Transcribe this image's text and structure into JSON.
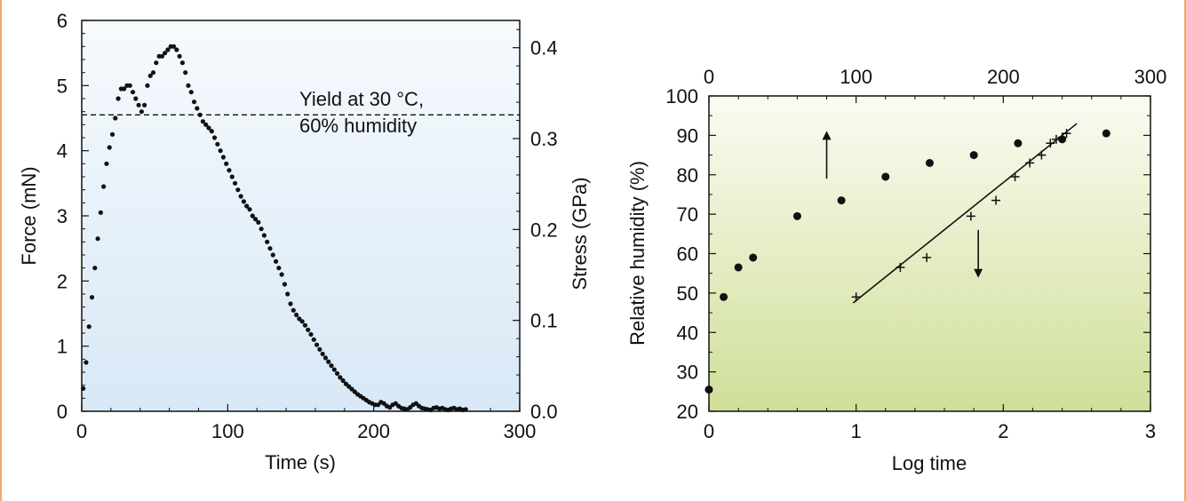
{
  "chart_data": [
    {
      "type": "scatter",
      "title": "",
      "xlabel": "Time (s)",
      "ylabel": "Force (mN)",
      "y2label": "Stress (GPa)",
      "xlim": [
        0,
        300
      ],
      "ylim": [
        0,
        6
      ],
      "y2lim": [
        0,
        0.43
      ],
      "xticks": [
        "0",
        "100",
        "200",
        "300"
      ],
      "yticks": [
        "0",
        "1",
        "2",
        "3",
        "4",
        "5",
        "6"
      ],
      "y2ticks": [
        "0.0",
        "0.1",
        "0.2",
        "0.3",
        "0.4"
      ],
      "y2tick_values": [
        0,
        0.1,
        0.2,
        0.3,
        0.4
      ],
      "background_gradient": [
        "#f6fafd",
        "#d8e8f6"
      ],
      "reference_line": {
        "y": 4.55,
        "style": "dashed",
        "label_lines": [
          "Yield at 30 °C,",
          "60% humidity"
        ]
      },
      "series": [
        {
          "x": [
            1,
            3,
            5,
            7,
            9,
            11,
            13,
            15,
            17,
            19,
            21,
            23,
            25,
            27,
            29,
            31,
            33,
            35,
            37,
            39,
            41,
            43,
            45,
            47,
            49,
            51,
            53,
            55,
            57,
            59,
            61,
            63,
            65,
            67,
            69,
            71,
            73,
            75,
            77,
            79,
            81,
            83,
            85,
            87,
            89,
            91,
            93,
            95,
            97,
            99,
            101,
            103,
            105,
            107,
            109,
            111,
            113,
            115,
            117,
            119,
            121,
            123,
            125,
            127,
            129,
            131,
            133,
            135,
            137,
            139,
            141,
            143,
            145,
            147,
            149,
            151,
            153,
            155,
            157,
            159,
            161,
            163,
            165,
            167,
            169,
            171,
            173,
            175,
            177,
            179,
            181,
            183,
            185,
            187,
            189,
            191,
            193,
            195,
            197,
            199,
            201,
            203,
            205,
            207,
            209,
            211,
            213,
            215,
            217,
            219,
            221,
            223,
            225,
            227,
            229,
            231,
            233,
            235,
            237,
            239,
            241,
            243,
            245,
            247,
            249,
            251,
            253,
            255,
            257,
            259,
            261,
            263
          ],
          "y": [
            0.35,
            0.75,
            1.3,
            1.75,
            2.2,
            2.65,
            3.05,
            3.45,
            3.8,
            4.05,
            4.25,
            4.5,
            4.8,
            4.95,
            4.95,
            5.0,
            5.0,
            4.9,
            4.8,
            4.7,
            4.6,
            4.7,
            5.0,
            5.15,
            5.2,
            5.35,
            5.45,
            5.45,
            5.5,
            5.55,
            5.6,
            5.6,
            5.55,
            5.45,
            5.35,
            5.2,
            5.0,
            4.9,
            4.75,
            4.65,
            4.55,
            4.45,
            4.4,
            4.35,
            4.3,
            4.2,
            4.1,
            4.0,
            3.9,
            3.8,
            3.7,
            3.6,
            3.5,
            3.4,
            3.3,
            3.22,
            3.15,
            3.1,
            3.0,
            2.95,
            2.9,
            2.8,
            2.7,
            2.6,
            2.5,
            2.4,
            2.3,
            2.2,
            2.1,
            1.95,
            1.8,
            1.65,
            1.55,
            1.48,
            1.42,
            1.38,
            1.32,
            1.25,
            1.18,
            1.1,
            1.02,
            0.95,
            0.88,
            0.82,
            0.76,
            0.7,
            0.64,
            0.58,
            0.52,
            0.47,
            0.42,
            0.38,
            0.34,
            0.3,
            0.26,
            0.23,
            0.2,
            0.17,
            0.14,
            0.12,
            0.1,
            0.1,
            0.14,
            0.12,
            0.08,
            0.06,
            0.1,
            0.12,
            0.08,
            0.05,
            0.04,
            0.03,
            0.06,
            0.1,
            0.12,
            0.08,
            0.05,
            0.04,
            0.03,
            0.02,
            0.05,
            0.06,
            0.04,
            0.05,
            0.03,
            0.02,
            0.04,
            0.05,
            0.03,
            0.04,
            0.02,
            0.03
          ]
        }
      ]
    },
    {
      "type": "scatter",
      "title": "",
      "xlabel": "Log time",
      "ylabel": "Relative humidity (%)",
      "xlim": [
        0,
        3
      ],
      "ylim": [
        20,
        100
      ],
      "x2lim": [
        0,
        300
      ],
      "xticks": [
        "0",
        "1",
        "2",
        "3"
      ],
      "yticks": [
        "20",
        "30",
        "40",
        "50",
        "60",
        "70",
        "80",
        "90",
        "100"
      ],
      "x2ticks": [
        "0",
        "100",
        "200",
        "300"
      ],
      "background_gradient": [
        "#fbfbf3",
        "#cfdf98"
      ],
      "series": [
        {
          "marker": "circle",
          "axis": "top",
          "x": [
            0,
            10,
            20,
            30,
            60,
            90,
            120,
            150,
            180,
            210,
            240,
            270
          ],
          "y": [
            25.5,
            49,
            56.5,
            59,
            69.5,
            73.5,
            79.5,
            83,
            85,
            88,
            89,
            90.5
          ]
        },
        {
          "marker": "plus",
          "axis": "bottom",
          "x": [
            1.0,
            1.3,
            1.48,
            1.78,
            1.95,
            2.08,
            2.18,
            2.26,
            2.32,
            2.36,
            2.4,
            2.43
          ],
          "y": [
            49,
            56.5,
            59,
            69.5,
            73.5,
            79.5,
            83,
            85,
            88,
            89,
            89.5,
            90.5
          ]
        }
      ],
      "fit_line": {
        "x": [
          0.98,
          2.5
        ],
        "y": [
          47.5,
          93
        ]
      },
      "arrows": [
        {
          "direction": "up",
          "x": 0.8,
          "y1": 79,
          "y2": 90
        },
        {
          "direction": "down",
          "x": 1.83,
          "y1": 66,
          "y2": 55
        }
      ]
    }
  ]
}
